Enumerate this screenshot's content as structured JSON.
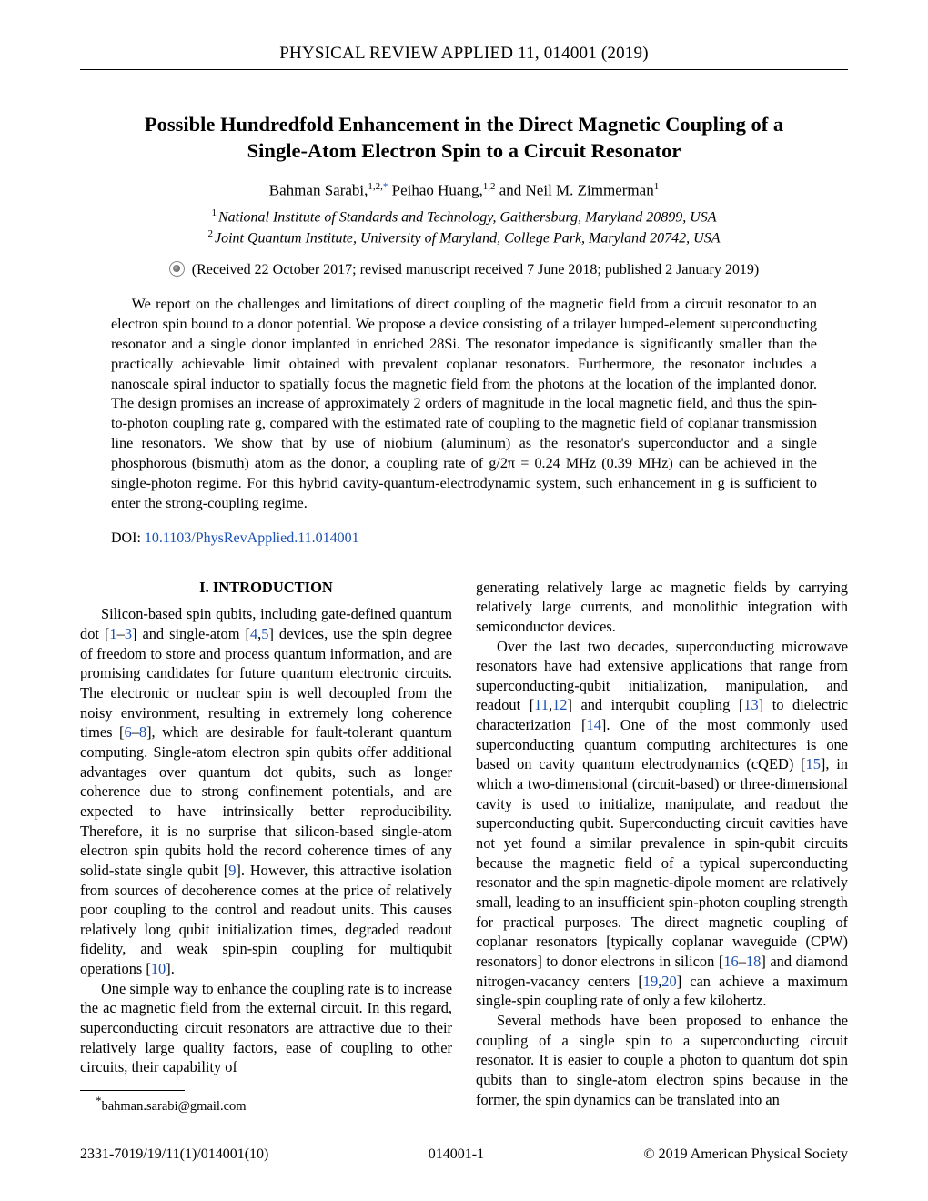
{
  "head": {
    "running": "PHYSICAL REVIEW APPLIED 11, 014001 (2019)"
  },
  "title_l1": "Possible Hundredfold Enhancement in the Direct Magnetic Coupling of a",
  "title_l2": "Single-Atom Electron Spin to a Circuit Resonator",
  "authors": {
    "a1": "Bahman Sarabi,",
    "a1_sup": "1,2,",
    "a1_ast": "*",
    "a2": " Peihao Huang,",
    "a2_sup": "1,2",
    "a3": " and Neil M. Zimmerman",
    "a3_sup": "1"
  },
  "affil": {
    "l1_sup": "1",
    "l1": "National Institute of Standards and Technology, Gaithersburg, Maryland 20899, USA",
    "l2_sup": "2",
    "l2": "Joint Quantum Institute, University of Maryland, College Park, Maryland 20742, USA"
  },
  "received": "(Received 22 October 2017; revised manuscript received 7 June 2018; published 2 January 2019)",
  "abstract": "We report on the challenges and limitations of direct coupling of the magnetic field from a circuit resonator to an electron spin bound to a donor potential. We propose a device consisting of a trilayer lumped-element superconducting resonator and a single donor implanted in enriched 28Si. The resonator impedance is significantly smaller than the practically achievable limit obtained with prevalent coplanar resonators. Furthermore, the resonator includes a nanoscale spiral inductor to spatially focus the magnetic field from the photons at the location of the implanted donor. The design promises an increase of approximately 2 orders of magnitude in the local magnetic field, and thus the spin-to-photon coupling rate g, compared with the estimated rate of coupling to the magnetic field of coplanar transmission line resonators. We show that by use of niobium (aluminum) as the resonator's superconductor and a single phosphorous (bismuth) atom as the donor, a coupling rate of g/2π = 0.24 MHz (0.39 MHz) can be achieved in the single-photon regime. For this hybrid cavity-quantum-electrodynamic system, such enhancement in g is sufficient to enter the strong-coupling regime.",
  "doi": {
    "label": "DOI: ",
    "link_text": "10.1103/PhysRevApplied.11.014001"
  },
  "section_head": "I. INTRODUCTION",
  "body": {
    "p1a": "Silicon-based spin qubits, including gate-defined quantum dot [",
    "c1": "1",
    "dash1": "–",
    "c3": "3",
    "p1b": "] and single-atom [",
    "c4": "4",
    "comma1": ",",
    "c5": "5",
    "p1c": "] devices, use the spin degree of freedom to store and process quantum information, and are promising candidates for future quantum electronic circuits. The electronic or nuclear spin is well decoupled from the noisy environment, resulting in extremely long coherence times [",
    "c6": "6",
    "dash2": "–",
    "c8": "8",
    "p1d": "], which are desirable for fault-tolerant quantum computing. Single-atom electron spin qubits offer additional advantages over quantum dot qubits, such as longer coherence due to strong confinement potentials, and are expected to have intrinsically better reproducibility. Therefore, it is no surprise that silicon-based single-atom electron spin qubits hold the record coherence times of any solid-state single qubit [",
    "c9": "9",
    "p1e": "]. However, this attractive isolation from sources of decoherence comes at the price of relatively poor coupling to the control and readout units. This causes relatively long qubit initialization times, degraded readout fidelity, and weak spin-spin coupling for multiqubit operations [",
    "c10": "10",
    "p1f": "].",
    "p2": "One simple way to enhance the coupling rate is to increase the ac magnetic field from the external circuit. In this regard, superconducting circuit resonators are attractive due to their relatively large quality factors, ease of coupling to other circuits, their capability of",
    "p3": "generating relatively large ac magnetic fields by carrying relatively large currents, and monolithic integration with semiconductor devices.",
    "p4a": "Over the last two decades, superconducting microwave resonators have had extensive applications that range from superconducting-qubit initialization, manipulation, and readout [",
    "c11": "11",
    "comma2": ",",
    "c12": "12",
    "p4b": "] and interqubit coupling [",
    "c13": "13",
    "p4c": "] to dielectric characterization [",
    "c14": "14",
    "p4d": "]. One of the most commonly used superconducting quantum computing architectures is one based on cavity quantum electrodynamics (cQED) [",
    "c15": "15",
    "p4e": "], in which a two-dimensional (circuit-based) or three-dimensional cavity is used to initialize, manipulate, and readout the superconducting qubit. Superconducting circuit cavities have not yet found a similar prevalence in spin-qubit circuits because the magnetic field of a typical superconducting resonator and the spin magnetic-dipole moment are relatively small, leading to an insufficient spin-photon coupling strength for practical purposes. The direct magnetic coupling of coplanar resonators [typically coplanar waveguide (CPW) resonators] to donor electrons in silicon [",
    "c16": "16",
    "dash3": "–",
    "c18": "18",
    "p4f": "] and diamond nitrogen-vacancy centers [",
    "c19": "19",
    "comma3": ",",
    "c20": "20",
    "p4g": "] can achieve a maximum single-spin coupling rate of only a few kilohertz.",
    "p5": "Several methods have been proposed to enhance the coupling of a single spin to a superconducting circuit resonator. It is easier to couple a photon to quantum dot spin qubits than to single-atom electron spins because in the former, the spin dynamics can be translated into an"
  },
  "footnote": {
    "mark": "*",
    "text": "bahman.sarabi@gmail.com"
  },
  "footer": {
    "left": "2331-7019/19/11(1)/014001(10)",
    "center": "014001-1",
    "right": "© 2019 American Physical Society"
  }
}
